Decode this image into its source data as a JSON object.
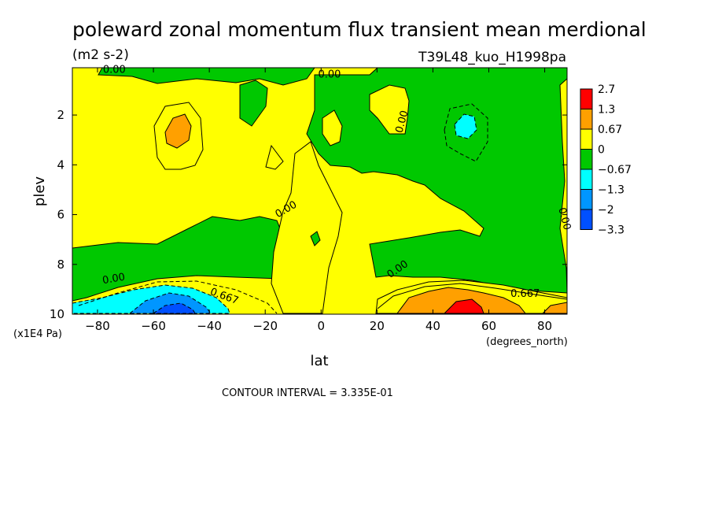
{
  "chart_data": {
    "type": "heatmap",
    "title": "poleward zonal momentum flux transient mean merdional",
    "units": "(m2 s-2)",
    "run_label": "T39L48_kuo_H1998pa",
    "xlabel": "lat",
    "xunits": "(degrees_north)",
    "ylabel": "plev",
    "yunits": "(x1E4 Pa)",
    "footer": "CONTOUR INTERVAL = 3.335E-01",
    "xlim": [
      -89,
      88
    ],
    "ylim": [
      10,
      0.1
    ],
    "x_ticks": [
      -80,
      -60,
      -40,
      -20,
      0,
      20,
      40,
      60,
      80
    ],
    "x_tick_labels": [
      "−80",
      "−60",
      "−40",
      "−20",
      "0",
      "20",
      "40",
      "60",
      "80"
    ],
    "y_ticks": [
      2,
      4,
      6,
      8,
      10
    ],
    "y_tick_labels": [
      "2",
      "4",
      "6",
      "8",
      "10"
    ],
    "contour_interval": 0.3335,
    "colorbar": {
      "levels": [
        "2.7",
        "1.3",
        "0.67",
        "0",
        "−0.67",
        "−1.3",
        "−2",
        "−3.3"
      ],
      "colors": [
        "#ff0000",
        "#ffa000",
        "#ffff00",
        "#00c800",
        "#00ffff",
        "#0096ff",
        "#0050ff"
      ]
    },
    "contour_labels": [
      {
        "text": "0.00",
        "x": -74,
        "y": 0.3,
        "rot": 0
      },
      {
        "text": "0.00",
        "x": 3,
        "y": 0.5,
        "rot": 0
      },
      {
        "text": "0.00",
        "x": 30,
        "y": 2.3,
        "rot": -75
      },
      {
        "text": "0.00",
        "x": -12,
        "y": 5.9,
        "rot": -30
      },
      {
        "text": "0.00",
        "x": 86,
        "y": 6.2,
        "rot": 75
      },
      {
        "text": "0.00",
        "x": 28,
        "y": 8.3,
        "rot": -35
      },
      {
        "text": "0.00",
        "x": -74,
        "y": 8.7,
        "rot": -10
      },
      {
        "text": "0.667",
        "x": -35,
        "y": 9.4,
        "rot": 20
      },
      {
        "text": "0.667",
        "x": 73,
        "y": 9.3,
        "rot": 0
      }
    ]
  }
}
